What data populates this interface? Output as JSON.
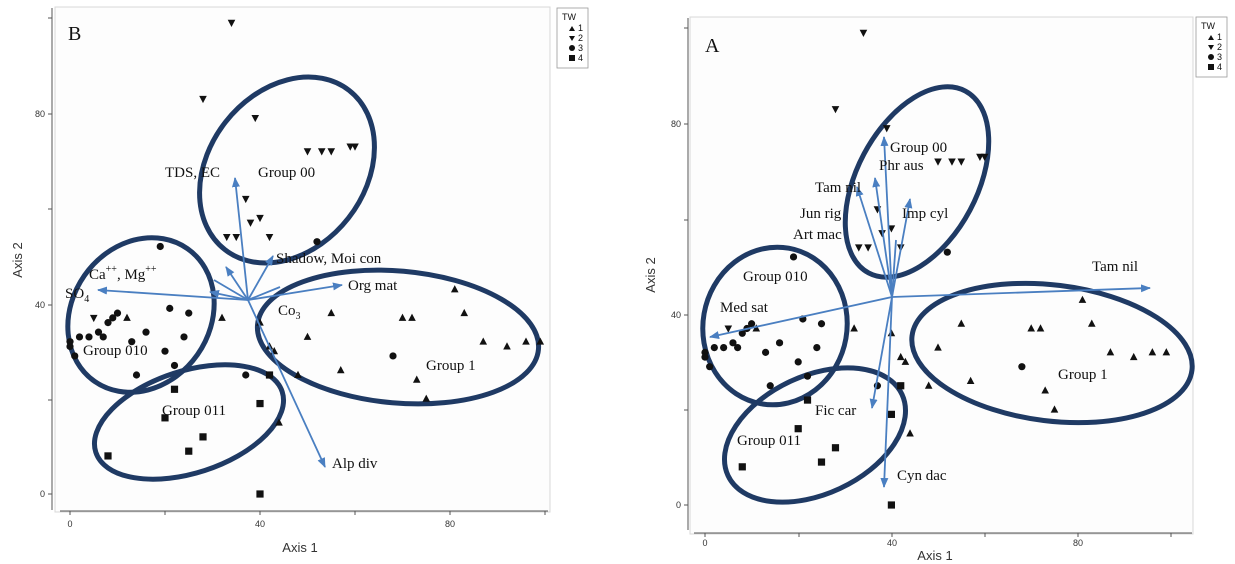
{
  "chart_data": [
    {
      "type": "scatter",
      "panel_label": "B",
      "xlabel": "Axis 1",
      "ylabel": "Axis 2",
      "xlim": [
        0,
        100
      ],
      "ylim": [
        0,
        100
      ],
      "xticks": [
        "0",
        "40",
        "80"
      ],
      "yticks": [
        "0",
        "40",
        "80"
      ],
      "legend": {
        "title": "TW",
        "entries": [
          {
            "label": "1",
            "marker": "triangle-up"
          },
          {
            "label": "2",
            "marker": "triangle-down"
          },
          {
            "label": "3",
            "marker": "circle"
          },
          {
            "label": "4",
            "marker": "square"
          }
        ]
      },
      "series": [
        {
          "name": "1",
          "points": [
            [
              12,
              37
            ],
            [
              32,
              37
            ],
            [
              40,
              36
            ],
            [
              42,
              31
            ],
            [
              43,
              30
            ],
            [
              48,
              25
            ],
            [
              50,
              33
            ],
            [
              55,
              38
            ],
            [
              70,
              37
            ],
            [
              72,
              37
            ],
            [
              81,
              43
            ],
            [
              83,
              38
            ],
            [
              87,
              32
            ],
            [
              92,
              31
            ],
            [
              96,
              32
            ],
            [
              99,
              32
            ],
            [
              73,
              24
            ],
            [
              57,
              26
            ],
            [
              75,
              20
            ],
            [
              44,
              15
            ]
          ]
        },
        {
          "name": "2",
          "points": [
            [
              34,
              99
            ],
            [
              28,
              83
            ],
            [
              39,
              79
            ],
            [
              50,
              72
            ],
            [
              53,
              72
            ],
            [
              55,
              72
            ],
            [
              59,
              73
            ],
            [
              60,
              73
            ],
            [
              37,
              62
            ],
            [
              38,
              57
            ],
            [
              40,
              58
            ],
            [
              33,
              54
            ],
            [
              42,
              54
            ],
            [
              35,
              54
            ],
            [
              5,
              37
            ]
          ]
        },
        {
          "name": "3",
          "points": [
            [
              0,
              32
            ],
            [
              1,
              29
            ],
            [
              0,
              31
            ],
            [
              2,
              33
            ],
            [
              4,
              33
            ],
            [
              6,
              34
            ],
            [
              7,
              33
            ],
            [
              8,
              36
            ],
            [
              9,
              37
            ],
            [
              10,
              38
            ],
            [
              13,
              32
            ],
            [
              14,
              25
            ],
            [
              16,
              34
            ],
            [
              19,
              52
            ],
            [
              20,
              30
            ],
            [
              21,
              39
            ],
            [
              24,
              33
            ],
            [
              25,
              38
            ],
            [
              37,
              25
            ],
            [
              52,
              53
            ],
            [
              68,
              29
            ],
            [
              22,
              27
            ]
          ]
        },
        {
          "name": "4",
          "points": [
            [
              8,
              8
            ],
            [
              20,
              16
            ],
            [
              22,
              22
            ],
            [
              25,
              9
            ],
            [
              28,
              12
            ],
            [
              40,
              19
            ],
            [
              42,
              25
            ],
            [
              40,
              0
            ]
          ]
        }
      ],
      "vectors": [
        {
          "label": "TDS, EC",
          "end": [
            38,
            68
          ]
        },
        {
          "label": "Shadow, Moi con",
          "end": [
            42,
            51
          ]
        },
        {
          "label": "Ca⁺⁺, Mg⁺⁺",
          "end": [
            33,
            49
          ]
        },
        {
          "label": "SO₄",
          "end": [
            5,
            44
          ]
        },
        {
          "label": "Org mat",
          "end": [
            57,
            44
          ]
        },
        {
          "label": "Co₃",
          "end": [
            30,
            43
          ]
        },
        {
          "label": "Alp div",
          "end": [
            54,
            6
          ]
        }
      ],
      "vector_origin": [
        38,
        41
      ],
      "groups": [
        "Group 00",
        "Group 010",
        "Group 011",
        "Group 1"
      ]
    },
    {
      "type": "scatter",
      "panel_label": "A",
      "xlabel": "Axis 1",
      "ylabel": "Axis 2",
      "xlim": [
        0,
        100
      ],
      "ylim": [
        0,
        100
      ],
      "xticks": [
        "0",
        "40",
        "80"
      ],
      "yticks": [
        "0",
        "40",
        "80"
      ],
      "legend": {
        "title": "TW",
        "entries": [
          {
            "label": "1",
            "marker": "triangle-up"
          },
          {
            "label": "2",
            "marker": "triangle-down"
          },
          {
            "label": "3",
            "marker": "circle"
          },
          {
            "label": "4",
            "marker": "square"
          }
        ]
      },
      "series": [
        {
          "name": "1",
          "points": [
            [
              11,
              37
            ],
            [
              32,
              37
            ],
            [
              40,
              36
            ],
            [
              42,
              31
            ],
            [
              43,
              30
            ],
            [
              48,
              25
            ],
            [
              50,
              33
            ],
            [
              55,
              38
            ],
            [
              70,
              37
            ],
            [
              72,
              37
            ],
            [
              81,
              43
            ],
            [
              83,
              38
            ],
            [
              87,
              32
            ],
            [
              92,
              31
            ],
            [
              96,
              32
            ],
            [
              99,
              32
            ],
            [
              73,
              24
            ],
            [
              57,
              26
            ],
            [
              75,
              20
            ],
            [
              44,
              15
            ]
          ]
        },
        {
          "name": "2",
          "points": [
            [
              34,
              99
            ],
            [
              28,
              83
            ],
            [
              39,
              79
            ],
            [
              50,
              72
            ],
            [
              53,
              72
            ],
            [
              55,
              72
            ],
            [
              59,
              73
            ],
            [
              60,
              73
            ],
            [
              37,
              62
            ],
            [
              38,
              57
            ],
            [
              40,
              58
            ],
            [
              33,
              54
            ],
            [
              42,
              54
            ],
            [
              35,
              54
            ],
            [
              5,
              37
            ]
          ]
        },
        {
          "name": "3",
          "points": [
            [
              0,
              32
            ],
            [
              1,
              29
            ],
            [
              0,
              31
            ],
            [
              2,
              33
            ],
            [
              4,
              33
            ],
            [
              6,
              34
            ],
            [
              7,
              33
            ],
            [
              8,
              36
            ],
            [
              9,
              37
            ],
            [
              10,
              38
            ],
            [
              13,
              32
            ],
            [
              14,
              25
            ],
            [
              16,
              34
            ],
            [
              19,
              52
            ],
            [
              20,
              30
            ],
            [
              21,
              39
            ],
            [
              24,
              33
            ],
            [
              25,
              38
            ],
            [
              37,
              25
            ],
            [
              52,
              53
            ],
            [
              68,
              29
            ],
            [
              22,
              27
            ]
          ]
        },
        {
          "name": "4",
          "points": [
            [
              8,
              8
            ],
            [
              20,
              16
            ],
            [
              22,
              22
            ],
            [
              25,
              9
            ],
            [
              28,
              12
            ],
            [
              40,
              19
            ],
            [
              42,
              25
            ],
            [
              40,
              0
            ]
          ]
        }
      ],
      "vectors": [
        {
          "label": "Group 00 Phr aus",
          "end": [
            39,
            78
          ]
        },
        {
          "label": "Tam nil",
          "end": [
            37,
            67
          ]
        },
        {
          "label": "Jun rig Art mac",
          "end": [
            33,
            65
          ]
        },
        {
          "label": "Imp cyl",
          "end": [
            44,
            63
          ]
        },
        {
          "label": "Tam nil",
          "end": [
            95,
            46
          ]
        },
        {
          "label": "Med sat",
          "end": [
            2,
            34
          ]
        },
        {
          "label": "Fic car",
          "end": [
            36,
            22
          ]
        },
        {
          "label": "Cyn dac",
          "end": [
            39,
            3
          ]
        }
      ],
      "vector_origin": [
        40,
        46
      ],
      "groups": [
        "Group 00",
        "Group 010",
        "Group 011",
        "Group 1"
      ]
    }
  ],
  "panelB": {
    "label": "B",
    "xlabel": "Axis 1",
    "ylabel": "Axis 2",
    "legend_title": "TW",
    "legend": [
      "1",
      "2",
      "3",
      "4"
    ],
    "xticks": [
      "0",
      "40",
      "80"
    ],
    "yticks": [
      "0",
      "40",
      "80"
    ],
    "groups": {
      "g00": "Group 00",
      "g010": "Group 010",
      "g011": "Group 011",
      "g1": "Group 1"
    },
    "vectors": {
      "tds": "TDS, EC",
      "shadow": "Shadow, Moi con",
      "ca": "Ca",
      "ca_sup1": "++",
      "ca_mid": ", Mg",
      "ca_sup2": "++",
      "so4": "SO",
      "so4_sub": "4",
      "org": "Org mat",
      "co3": "Co",
      "co3_sub": "3",
      "alp": "Alp div"
    }
  },
  "panelA": {
    "label": "A",
    "xlabel": "Axis 1",
    "ylabel": "Axis 2",
    "legend_title": "TW",
    "legend": [
      "1",
      "2",
      "3",
      "4"
    ],
    "xticks": [
      "0",
      "40",
      "80"
    ],
    "yticks": [
      "0",
      "40",
      "80"
    ],
    "groups": {
      "g00": "Group 00",
      "g010": "Group 010",
      "g011": "Group 011",
      "g1": "Group 1"
    },
    "vectors": {
      "phr": "Phr aus",
      "tam1": "Tam nil",
      "jun": "Jun rig",
      "art": "Art mac",
      "imp": "Imp cyl",
      "tam2": "Tam nil",
      "med": "Med sat",
      "fic": "Fic car",
      "cyn": "Cyn dac"
    }
  },
  "colors": {
    "vector": "#4a7fc1",
    "ellipse": "#1f3a64",
    "marker": "#111111",
    "axis": "#555555"
  }
}
